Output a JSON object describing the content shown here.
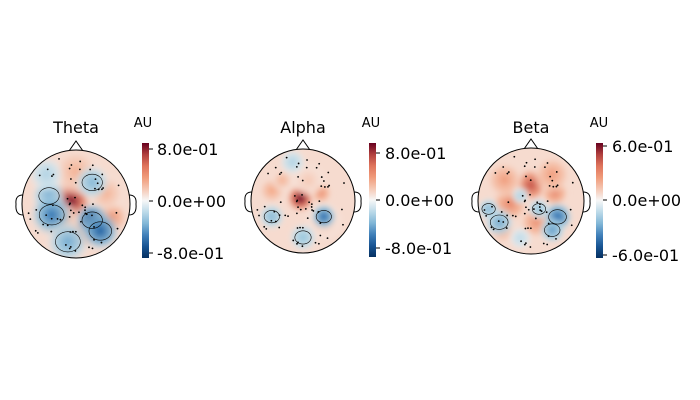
{
  "figure": {
    "panels": [
      {
        "title": "Theta",
        "unit": "AU",
        "ticks": [
          "8.0e-01",
          "0.0e+00",
          "-8.0e-01"
        ],
        "vmin": -0.8,
        "vmax": 0.8,
        "blobs": [
          {
            "u": -0.1,
            "v": 0.05,
            "r": 0.22,
            "a": 0.95
          },
          {
            "u": -0.25,
            "v": -0.35,
            "r": 0.22,
            "a": 0.35
          },
          {
            "u": 0.35,
            "v": -0.35,
            "r": 0.18,
            "a": 0.35
          },
          {
            "u": 0.65,
            "v": -0.25,
            "r": 0.18,
            "a": 0.45
          },
          {
            "u": 0.1,
            "v": -0.55,
            "r": 0.18,
            "a": 0.4
          },
          {
            "u": 0.0,
            "v": 0.6,
            "r": 0.25,
            "a": 0.3
          },
          {
            "u": 0.55,
            "v": 0.2,
            "r": 0.2,
            "a": 0.3
          },
          {
            "u": -0.5,
            "v": 0.15,
            "r": 0.18,
            "a": -0.45
          },
          {
            "u": -0.45,
            "v": -0.2,
            "r": 0.22,
            "a": -0.65
          },
          {
            "u": 0.3,
            "v": 0.4,
            "r": 0.18,
            "a": -0.4
          },
          {
            "u": -0.15,
            "v": -0.7,
            "r": 0.22,
            "a": -0.45
          },
          {
            "u": 0.3,
            "v": -0.3,
            "r": 0.18,
            "a": -0.85
          },
          {
            "u": 0.45,
            "v": -0.5,
            "r": 0.2,
            "a": -0.75
          },
          {
            "u": -0.55,
            "v": 0.55,
            "r": 0.18,
            "a": -0.25
          }
        ]
      },
      {
        "title": "Alpha",
        "unit": "AU",
        "ticks": [
          "8.0e-01",
          "0.0e+00",
          "-8.0e-01"
        ],
        "vmin": -0.8,
        "vmax": 0.8,
        "blobs": [
          {
            "u": -0.05,
            "v": 0.05,
            "r": 0.15,
            "a": 1.0
          },
          {
            "u": 0.35,
            "v": 0.15,
            "r": 0.12,
            "a": 0.45
          },
          {
            "u": -0.6,
            "v": 0.2,
            "r": 0.15,
            "a": 0.35
          },
          {
            "u": -0.4,
            "v": 0.4,
            "r": 0.12,
            "a": 0.3
          },
          {
            "u": 0.1,
            "v": 0.4,
            "r": 0.18,
            "a": 0.2
          },
          {
            "u": 0.4,
            "v": -0.4,
            "r": 0.2,
            "a": 0.2
          },
          {
            "u": 0.4,
            "v": -0.3,
            "r": 0.14,
            "a": -0.7
          },
          {
            "u": -0.6,
            "v": -0.3,
            "r": 0.14,
            "a": -0.4
          },
          {
            "u": 0.0,
            "v": -0.7,
            "r": 0.15,
            "a": -0.35
          },
          {
            "u": -0.2,
            "v": 0.75,
            "r": 0.14,
            "a": -0.25
          }
        ]
      },
      {
        "title": "Beta",
        "unit": "AU",
        "ticks": [
          "6.0e-01",
          "0.0e+00",
          "-6.0e-01"
        ],
        "vmin": -0.6,
        "vmax": 0.6,
        "blobs": [
          {
            "u": 0.0,
            "v": 0.3,
            "r": 0.18,
            "a": 0.75
          },
          {
            "u": 0.45,
            "v": 0.15,
            "r": 0.15,
            "a": 0.5
          },
          {
            "u": -0.4,
            "v": -0.05,
            "r": 0.2,
            "a": 0.5
          },
          {
            "u": -0.5,
            "v": 0.4,
            "r": 0.2,
            "a": 0.4
          },
          {
            "u": 0.4,
            "v": 0.5,
            "r": 0.2,
            "a": 0.4
          },
          {
            "u": 0.1,
            "v": -0.4,
            "r": 0.18,
            "a": 0.45
          },
          {
            "u": -0.55,
            "v": -0.55,
            "r": 0.15,
            "a": 0.35
          },
          {
            "u": 0.5,
            "v": -0.3,
            "r": 0.16,
            "a": -0.7
          },
          {
            "u": 0.4,
            "v": -0.55,
            "r": 0.14,
            "a": -0.5
          },
          {
            "u": -0.6,
            "v": -0.4,
            "r": 0.16,
            "a": -0.45
          },
          {
            "u": -0.8,
            "v": -0.15,
            "r": 0.12,
            "a": -0.4
          },
          {
            "u": 0.15,
            "v": -0.15,
            "r": 0.12,
            "a": -0.35
          },
          {
            "u": -0.2,
            "v": 0.1,
            "r": 0.1,
            "a": -0.25
          },
          {
            "u": -0.2,
            "v": -0.7,
            "r": 0.12,
            "a": -0.2
          }
        ]
      }
    ]
  }
}
